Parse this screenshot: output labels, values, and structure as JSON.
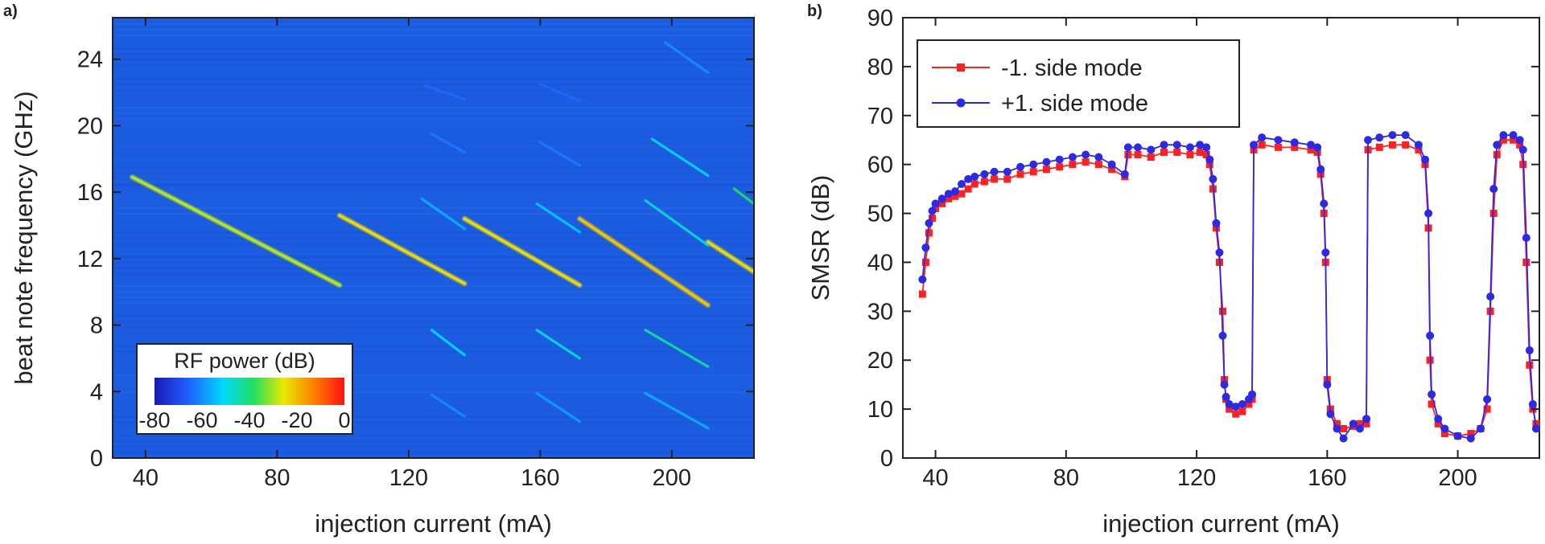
{
  "colors": {
    "background_map": "#1c5ce0",
    "series_minus": "#ff2020",
    "series_plus": "#2a2ae8",
    "axis": "#222222",
    "colorscale": [
      "#1a1ab8",
      "#2060ff",
      "#00d8ff",
      "#20e060",
      "#e8e800",
      "#ff8000",
      "#ff1010"
    ]
  },
  "chart_data": [
    {
      "type": "heatmap",
      "panel_label": "a)",
      "xlabel": "injection current (mA)",
      "ylabel": "beat note frequency (GHz)",
      "xlim": [
        30,
        225
      ],
      "ylim": [
        0,
        26.5
      ],
      "xticks": [
        40,
        80,
        120,
        160,
        200
      ],
      "yticks": [
        0,
        4,
        8,
        12,
        16,
        20,
        24
      ],
      "colorbar": {
        "title": "RF power (dB)",
        "range": [
          -80,
          0
        ],
        "ticks": [
          "-80",
          "-60",
          "-40",
          "-20",
          "0"
        ]
      },
      "background_level_db": -70,
      "traces": [
        {
          "level_db": -30,
          "points": [
            [
              36,
              16.9
            ],
            [
              99,
              10.4
            ]
          ]
        },
        {
          "level_db": -25,
          "points": [
            [
              99,
              14.6
            ],
            [
              137,
              10.5
            ]
          ]
        },
        {
          "level_db": -25,
          "points": [
            [
              137,
              14.4
            ],
            [
              172,
              10.4
            ]
          ]
        },
        {
          "level_db": -22,
          "points": [
            [
              172,
              14.4
            ],
            [
              211,
              9.2
            ]
          ]
        },
        {
          "level_db": -25,
          "points": [
            [
              211,
              13.0
            ],
            [
              225,
              11.2
            ]
          ]
        },
        {
          "level_db": -50,
          "points": [
            [
              192,
              15.5
            ],
            [
              211,
              12.8
            ]
          ]
        },
        {
          "level_db": -52,
          "points": [
            [
              194,
              19.2
            ],
            [
              211,
              17.0
            ]
          ]
        },
        {
          "level_db": -55,
          "points": [
            [
              159,
              15.3
            ],
            [
              172,
              13.6
            ]
          ]
        },
        {
          "level_db": -58,
          "points": [
            [
              124,
              15.6
            ],
            [
              137,
              13.8
            ]
          ]
        },
        {
          "level_db": -45,
          "points": [
            [
              192,
              7.7
            ],
            [
              211,
              5.5
            ]
          ]
        },
        {
          "level_db": -50,
          "points": [
            [
              159,
              7.7
            ],
            [
              172,
              6.0
            ]
          ]
        },
        {
          "level_db": -52,
          "points": [
            [
              127,
              7.7
            ],
            [
              137,
              6.2
            ]
          ]
        },
        {
          "level_db": -58,
          "points": [
            [
              192,
              3.9
            ],
            [
              211,
              1.8
            ]
          ]
        },
        {
          "level_db": -60,
          "points": [
            [
              159,
              3.9
            ],
            [
              172,
              2.2
            ]
          ]
        },
        {
          "level_db": -62,
          "points": [
            [
              127,
              3.8
            ],
            [
              137,
              2.5
            ]
          ]
        },
        {
          "level_db": -62,
          "points": [
            [
              198,
              25.0
            ],
            [
              211,
              23.2
            ]
          ]
        },
        {
          "level_db": -64,
          "points": [
            [
              127,
              19.5
            ],
            [
              137,
              18.4
            ]
          ]
        },
        {
          "level_db": -64,
          "points": [
            [
              160,
              19.0
            ],
            [
              172,
              17.6
            ]
          ]
        },
        {
          "level_db": -66,
          "points": [
            [
              160,
              22.5
            ],
            [
              172,
              21.5
            ]
          ]
        },
        {
          "level_db": -66,
          "points": [
            [
              125,
              22.4
            ],
            [
              137,
              21.6
            ]
          ]
        },
        {
          "level_db": -40,
          "points": [
            [
              219,
              16.2
            ],
            [
              225,
              15.3
            ]
          ]
        }
      ]
    },
    {
      "type": "line",
      "panel_label": "b)",
      "xlabel": "injection current (mA)",
      "ylabel": "SMSR (dB)",
      "xlim": [
        30,
        225
      ],
      "ylim": [
        0,
        90
      ],
      "xticks": [
        40,
        80,
        120,
        160,
        200
      ],
      "yticks": [
        0,
        10,
        20,
        30,
        40,
        50,
        60,
        70,
        80,
        90
      ],
      "legend_position": "top-left",
      "series": [
        {
          "name": "-1. side mode",
          "color": "#ff2020",
          "marker": "square",
          "points": [
            [
              36,
              33.5
            ],
            [
              37,
              40
            ],
            [
              38,
              46
            ],
            [
              39,
              49
            ],
            [
              40,
              51
            ],
            [
              42,
              52
            ],
            [
              44,
              53
            ],
            [
              46,
              53.5
            ],
            [
              48,
              54
            ],
            [
              50,
              55
            ],
            [
              52,
              56
            ],
            [
              55,
              56.5
            ],
            [
              58,
              57
            ],
            [
              62,
              57
            ],
            [
              66,
              58
            ],
            [
              70,
              58.5
            ],
            [
              74,
              59
            ],
            [
              78,
              59.5
            ],
            [
              82,
              60
            ],
            [
              86,
              60.5
            ],
            [
              90,
              60
            ],
            [
              94,
              59
            ],
            [
              98,
              57.5
            ],
            [
              99,
              62
            ],
            [
              102,
              62
            ],
            [
              106,
              61.5
            ],
            [
              110,
              62.5
            ],
            [
              114,
              62.5
            ],
            [
              118,
              62
            ],
            [
              121,
              62.5
            ],
            [
              123,
              62
            ],
            [
              124,
              60
            ],
            [
              125,
              55
            ],
            [
              126,
              47
            ],
            [
              127,
              40
            ],
            [
              128,
              30
            ],
            [
              128.5,
              16
            ],
            [
              129,
              12
            ],
            [
              130,
              10
            ],
            [
              132,
              9
            ],
            [
              134,
              9.5
            ],
            [
              136,
              11
            ],
            [
              137,
              12
            ],
            [
              137.5,
              63
            ],
            [
              140,
              64
            ],
            [
              145,
              63.5
            ],
            [
              150,
              63.5
            ],
            [
              155,
              63
            ],
            [
              157,
              62.5
            ],
            [
              158,
              58
            ],
            [
              159,
              50
            ],
            [
              159.5,
              40
            ],
            [
              160,
              16
            ],
            [
              161,
              10
            ],
            [
              163,
              7
            ],
            [
              165,
              6
            ],
            [
              168,
              6.5
            ],
            [
              170,
              7
            ],
            [
              172,
              7
            ],
            [
              172.5,
              63
            ],
            [
              176,
              63.5
            ],
            [
              180,
              64
            ],
            [
              184,
              64
            ],
            [
              188,
              63
            ],
            [
              190,
              60
            ],
            [
              191,
              47
            ],
            [
              191.5,
              20
            ],
            [
              192,
              11
            ],
            [
              194,
              7
            ],
            [
              196,
              5
            ],
            [
              200,
              4.5
            ],
            [
              204,
              5
            ],
            [
              207,
              6
            ],
            [
              209,
              10
            ],
            [
              210,
              30
            ],
            [
              211,
              50
            ],
            [
              212,
              62
            ],
            [
              214,
              65
            ],
            [
              217,
              65
            ],
            [
              219,
              64
            ],
            [
              220,
              60
            ],
            [
              221,
              40
            ],
            [
              222,
              19
            ],
            [
              223,
              10
            ],
            [
              224,
              7
            ]
          ]
        },
        {
          "name": "+1. side mode",
          "color": "#2a2ae8",
          "marker": "circle",
          "points": [
            [
              36,
              36.5
            ],
            [
              37,
              43
            ],
            [
              38,
              48
            ],
            [
              39,
              50.5
            ],
            [
              40,
              52
            ],
            [
              42,
              53
            ],
            [
              44,
              54
            ],
            [
              46,
              54.5
            ],
            [
              48,
              56
            ],
            [
              50,
              57
            ],
            [
              52,
              57.5
            ],
            [
              55,
              58
            ],
            [
              58,
              58.5
            ],
            [
              62,
              58.5
            ],
            [
              66,
              59.5
            ],
            [
              70,
              60
            ],
            [
              74,
              60.5
            ],
            [
              78,
              61
            ],
            [
              82,
              61.5
            ],
            [
              86,
              62
            ],
            [
              90,
              61.5
            ],
            [
              94,
              60
            ],
            [
              98,
              58
            ],
            [
              99,
              63.5
            ],
            [
              102,
              63.5
            ],
            [
              106,
              63
            ],
            [
              110,
              64
            ],
            [
              114,
              64
            ],
            [
              118,
              63.5
            ],
            [
              121,
              64
            ],
            [
              123,
              63.5
            ],
            [
              124,
              61
            ],
            [
              125,
              57
            ],
            [
              126,
              48
            ],
            [
              127,
              42
            ],
            [
              128,
              25
            ],
            [
              128.5,
              15
            ],
            [
              129,
              12.5
            ],
            [
              130,
              11
            ],
            [
              132,
              10.5
            ],
            [
              134,
              11
            ],
            [
              136,
              12
            ],
            [
              137,
              13
            ],
            [
              137.5,
              64
            ],
            [
              140,
              65.5
            ],
            [
              145,
              65
            ],
            [
              150,
              64.5
            ],
            [
              155,
              64
            ],
            [
              157,
              63.5
            ],
            [
              158,
              59
            ],
            [
              159,
              52
            ],
            [
              159.5,
              42
            ],
            [
              160,
              15
            ],
            [
              161,
              9
            ],
            [
              163,
              6
            ],
            [
              165,
              4
            ],
            [
              168,
              7
            ],
            [
              170,
              6
            ],
            [
              172,
              8
            ],
            [
              172.5,
              65
            ],
            [
              176,
              65.5
            ],
            [
              180,
              66
            ],
            [
              184,
              66
            ],
            [
              188,
              64
            ],
            [
              190,
              61
            ],
            [
              191,
              50
            ],
            [
              191.5,
              25
            ],
            [
              192,
              13
            ],
            [
              194,
              8
            ],
            [
              196,
              6
            ],
            [
              200,
              4.5
            ],
            [
              204,
              4
            ],
            [
              207,
              6
            ],
            [
              209,
              12
            ],
            [
              210,
              33
            ],
            [
              211,
              55
            ],
            [
              212,
              64
            ],
            [
              214,
              66
            ],
            [
              217,
              66
            ],
            [
              219,
              65
            ],
            [
              220,
              63
            ],
            [
              221,
              45
            ],
            [
              222,
              22
            ],
            [
              223,
              11
            ],
            [
              224,
              6
            ]
          ]
        }
      ]
    }
  ]
}
